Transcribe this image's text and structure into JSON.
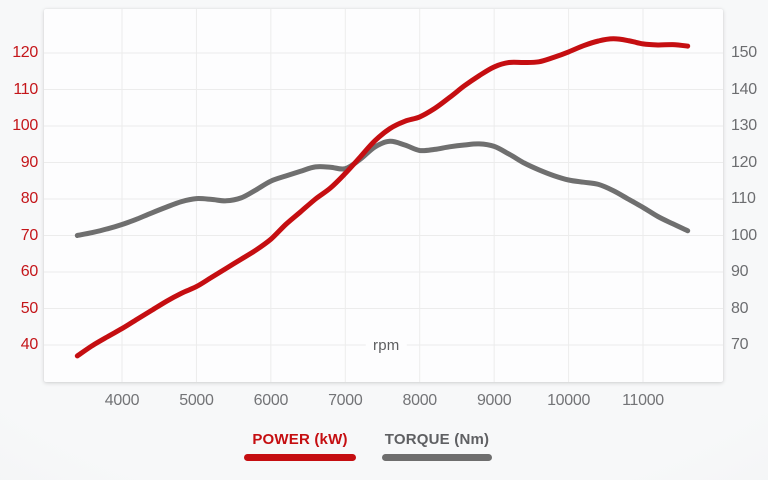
{
  "page": {
    "background": "#f3f4f6",
    "card_background": "#fdfdfe",
    "grid_color": "#ececec"
  },
  "chart_data": {
    "type": "line",
    "title": "",
    "xlabel": "rpm",
    "grid": true,
    "legend_position": "bottom",
    "x_ticks": [
      4000,
      5000,
      6000,
      7000,
      8000,
      9000,
      10000,
      11000
    ],
    "x_tick_labels": [
      "4000",
      "5000",
      "6000",
      "7000",
      "8000",
      "9000",
      "10000",
      "11000"
    ],
    "x": [
      3400,
      3600,
      3800,
      4000,
      4200,
      4400,
      4600,
      4800,
      5000,
      5200,
      5400,
      5600,
      5800,
      6000,
      6200,
      6400,
      6600,
      6800,
      7000,
      7200,
      7400,
      7600,
      7800,
      8000,
      8200,
      8400,
      8600,
      8800,
      9000,
      9200,
      9400,
      9600,
      9800,
      10000,
      10200,
      10400,
      10600,
      10800,
      11000,
      11200,
      11400,
      11600
    ],
    "left_axis": {
      "ticks": [
        120,
        110,
        100,
        90,
        80,
        70,
        60,
        50,
        40
      ],
      "min": 40,
      "max": 120,
      "label_color": "#c4161a"
    },
    "right_axis": {
      "ticks": [
        150,
        140,
        130,
        120,
        110,
        100,
        90,
        80,
        70
      ],
      "min": 70,
      "max": 150,
      "label_color": "#6c6d70"
    },
    "x_axis_label_color": "#737477",
    "series": [
      {
        "name": "POWER (kW)",
        "axis": "left",
        "color": "#c50e11",
        "label_color": "#c50e11",
        "values": [
          37,
          39.8,
          42.2,
          44.5,
          47,
          49.5,
          52,
          54.2,
          56,
          58.5,
          61,
          63.5,
          66,
          69,
          73,
          76.5,
          80,
          83,
          87,
          91.5,
          96,
          99.3,
          101.3,
          102.5,
          104.8,
          107.8,
          111,
          113.8,
          116.2,
          117.4,
          117.4,
          117.6,
          118.8,
          120.3,
          122,
          123.3,
          123.9,
          123.4,
          122.5,
          122.2,
          122.3,
          121.9
        ]
      },
      {
        "name": "TORQUE (Nm)",
        "axis": "right",
        "color": "#6f6f6f",
        "label_color": "#5f6063",
        "values": [
          100,
          100.8,
          101.8,
          103,
          104.5,
          106.2,
          107.8,
          109.3,
          110.1,
          109.9,
          109.5,
          110.3,
          112.5,
          114.9,
          116.3,
          117.6,
          118.8,
          118.7,
          118.3,
          120.9,
          124.3,
          125.8,
          124.8,
          123.3,
          123.6,
          124.3,
          124.8,
          125.1,
          124.4,
          122.3,
          119.9,
          118,
          116.4,
          115.2,
          114.6,
          114,
          112.3,
          110,
          107.7,
          105.2,
          103.2,
          101.3
        ]
      }
    ]
  }
}
